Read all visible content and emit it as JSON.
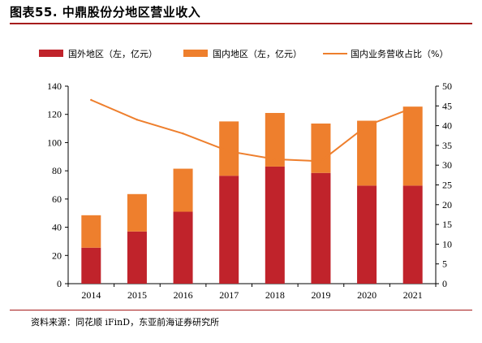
{
  "title": "图表55.  中鼎股份分地区营业收入",
  "source": "资料来源：同花顺 iFinD，东亚前海证券研究所",
  "colors": {
    "overseas": "#c0232b",
    "domestic": "#ee7f2d",
    "line": "#ee7f2d",
    "accent_rule": "#a61c1c"
  },
  "chart_data": {
    "type": "bar",
    "stacked": true,
    "categories": [
      "2014",
      "2015",
      "2016",
      "2017",
      "2018",
      "2019",
      "2020",
      "2021"
    ],
    "series": [
      {
        "name": "国外地区（左，亿元）",
        "type": "bar",
        "axis": "left",
        "values": [
          25.5,
          37,
          51,
          76.5,
          83,
          78.5,
          69.5,
          69.5
        ]
      },
      {
        "name": "国内地区（左，亿元）",
        "type": "bar",
        "axis": "left",
        "values": [
          23,
          26.5,
          30.5,
          38.5,
          38,
          35,
          46,
          56
        ]
      },
      {
        "name": "国内业务营收占比（%）",
        "type": "line",
        "axis": "right",
        "values": [
          46.5,
          41.5,
          38,
          33.5,
          31.5,
          31,
          40,
          44.5
        ]
      }
    ],
    "left_axis": {
      "ylim": [
        0,
        140
      ],
      "ticks": [
        0,
        20,
        40,
        60,
        80,
        100,
        120,
        140
      ]
    },
    "right_axis": {
      "ylim": [
        0,
        50
      ],
      "ticks": [
        0,
        5,
        10,
        15,
        20,
        25,
        30,
        35,
        40,
        45,
        50
      ]
    },
    "legend_placement": "top",
    "grid": false
  }
}
